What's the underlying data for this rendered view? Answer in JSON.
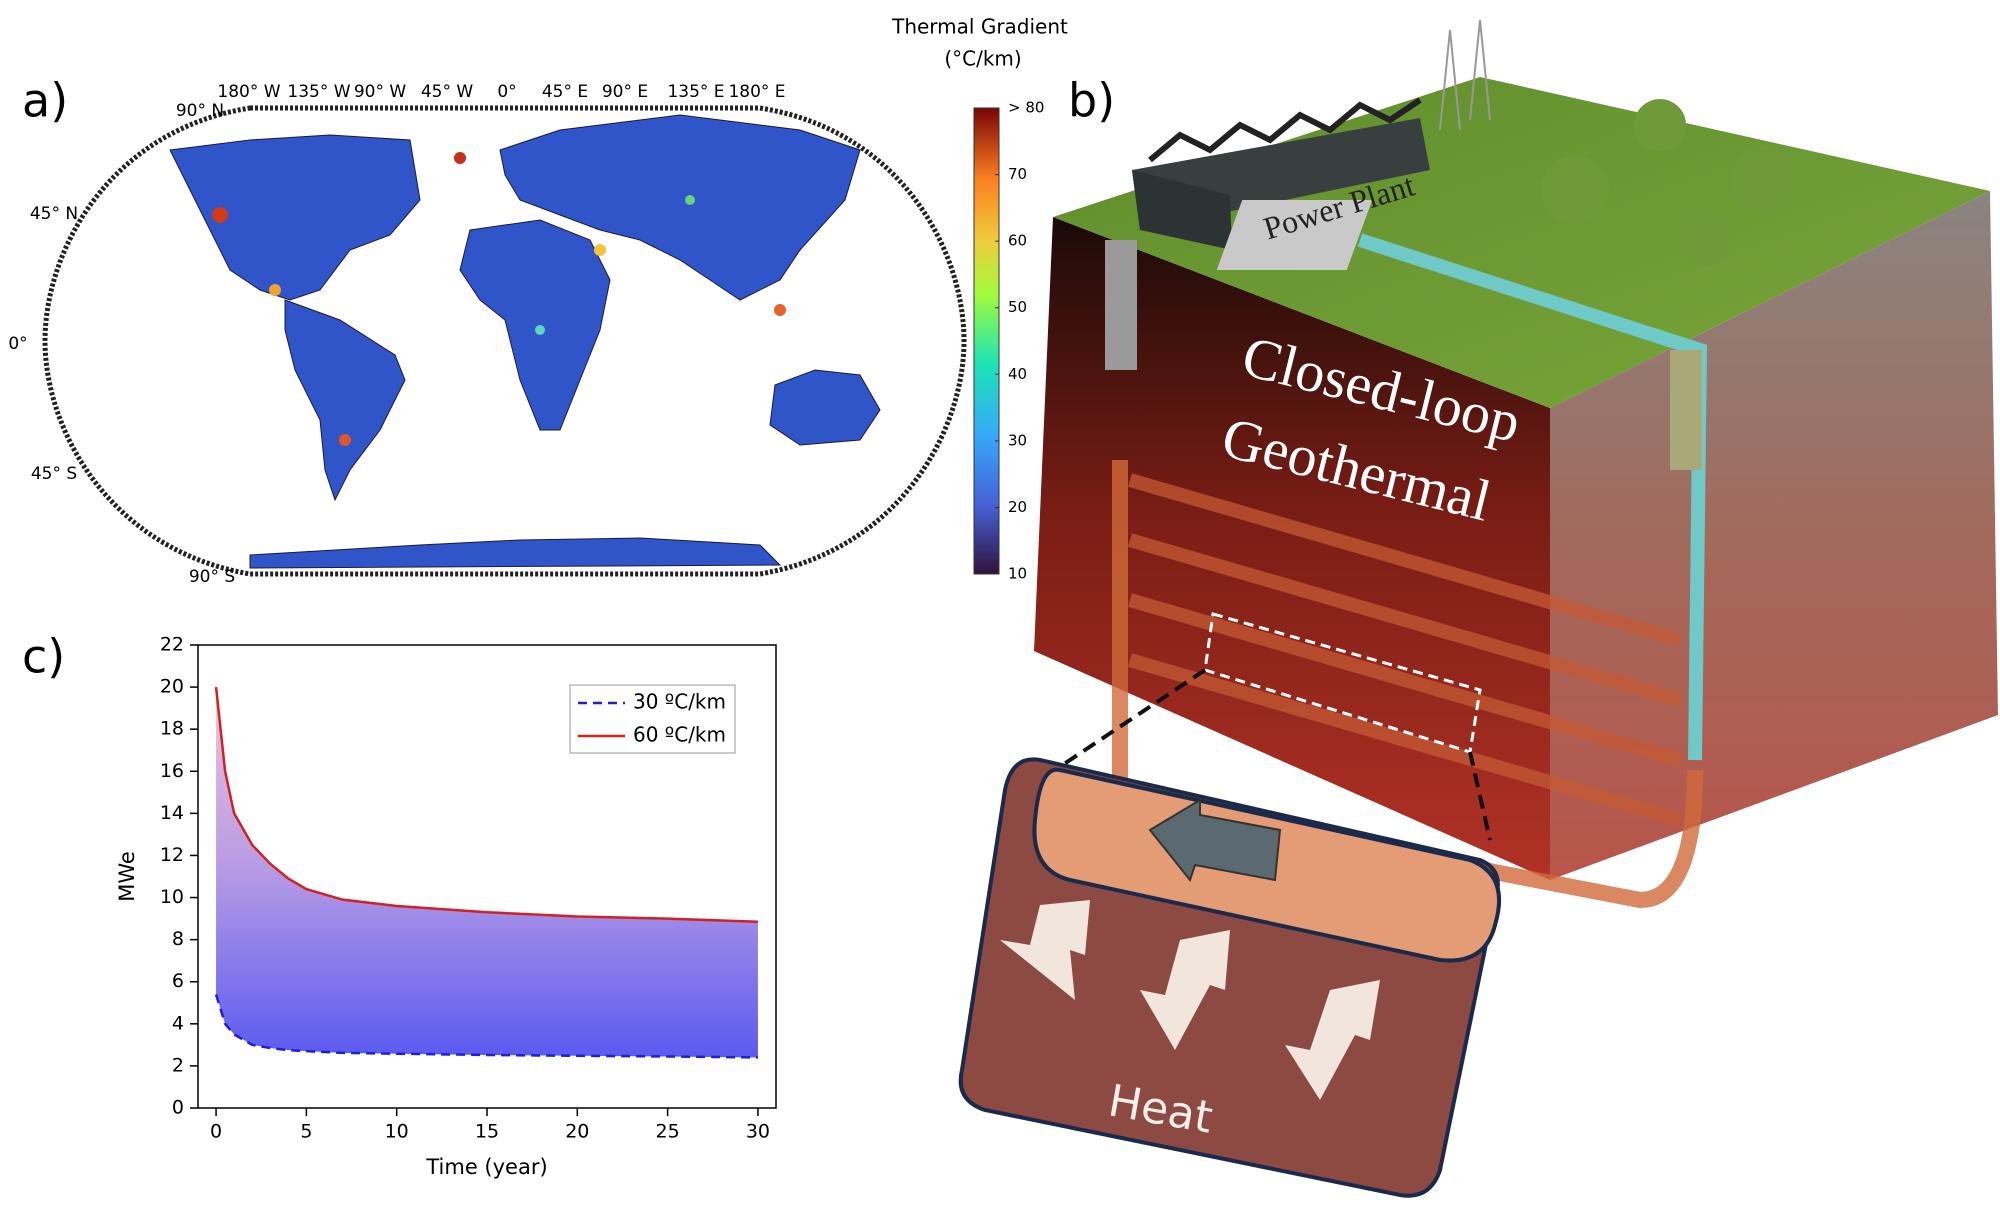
{
  "panel_labels": [
    "a)",
    "b)",
    "c)"
  ],
  "map": {
    "lon_labels": [
      "180° W",
      "135° W",
      "90° W",
      "45° W",
      "0°",
      "45° E",
      "90° E",
      "135° E",
      "180° E"
    ],
    "lat_labels": [
      "90° N",
      "45° N",
      "0°",
      "45° S",
      "90° S"
    ]
  },
  "colorbar": {
    "title": "Thermal Gradient",
    "unit": "(°C/km)",
    "lim": [
      10,
      80
    ],
    "ticks": [
      10,
      20,
      30,
      40,
      50,
      60,
      70,
      {
        "value": 80,
        "label": "> 80"
      }
    ]
  },
  "diagram": {
    "plant": "Power Plant",
    "title_lines": [
      "Closed-loop",
      "Geothermal"
    ],
    "heat": "Heat"
  },
  "chart_data": {
    "type": "line",
    "x_label": "Time (year)",
    "y_label": "MWe",
    "x": [
      0,
      0.5,
      1,
      2,
      3,
      4,
      5,
      7,
      10,
      15,
      20,
      25,
      30
    ],
    "series": [
      {
        "name": "30 ºC/km",
        "color": "#1f1fd8",
        "dash": true,
        "values": [
          5.4,
          4.0,
          3.5,
          3.0,
          2.85,
          2.75,
          2.7,
          2.62,
          2.58,
          2.52,
          2.48,
          2.45,
          2.4
        ]
      },
      {
        "name": "60 ºC/km",
        "color": "#d42020",
        "dash": false,
        "values": [
          20,
          16,
          14,
          12.5,
          11.6,
          10.9,
          10.4,
          9.9,
          9.6,
          9.3,
          9.1,
          9.0,
          8.85
        ]
      }
    ],
    "xlim": [
      -1,
      31
    ],
    "ylim": [
      0,
      22
    ],
    "xticks": [
      0,
      5,
      10,
      15,
      20,
      25,
      30
    ],
    "yticks": [
      0,
      2,
      4,
      6,
      8,
      10,
      12,
      14,
      16,
      18,
      20,
      22
    ],
    "fill_between": true
  }
}
